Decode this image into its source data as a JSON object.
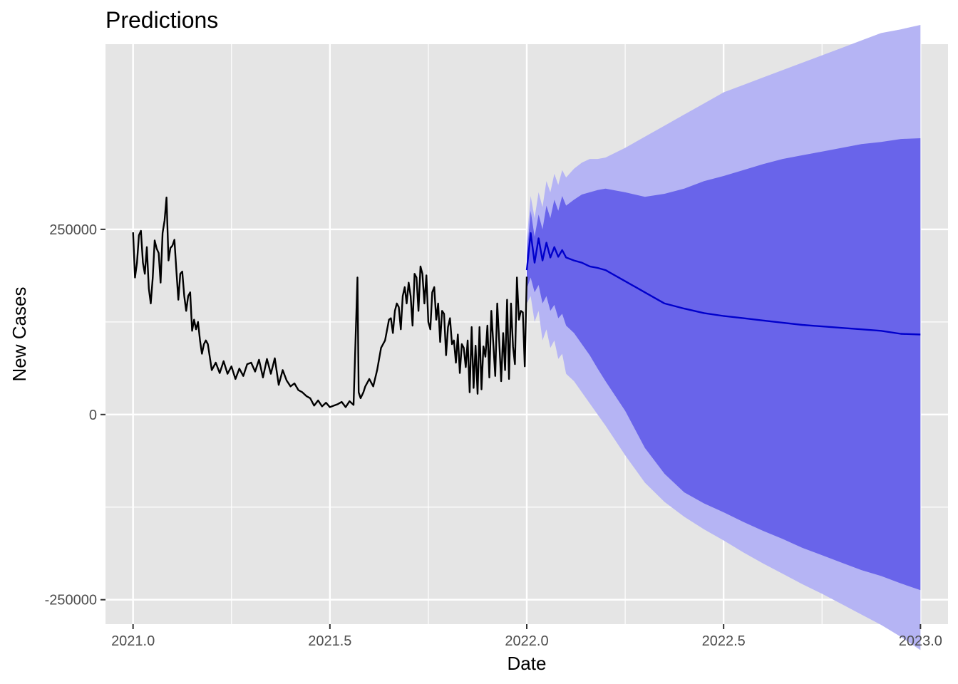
{
  "chart_data": {
    "type": "line",
    "title": "Predictions",
    "xlabel": "Date",
    "ylabel": "New Cases",
    "xlim": [
      2020.93,
      2023.07
    ],
    "ylim": [
      -283000,
      500000
    ],
    "x_ticks": [
      2021.0,
      2021.5,
      2022.0,
      2022.5,
      2023.0
    ],
    "x_tick_labels": [
      "2021.0",
      "2021.5",
      "2022.0",
      "2022.5",
      "2023.0"
    ],
    "y_ticks": [
      -250000,
      0,
      250000
    ],
    "y_tick_labels": [
      "-250000",
      "0",
      "250000"
    ],
    "grid": true,
    "colors": {
      "panel": "#e5e5e5",
      "grid": "#ffffff",
      "observed": "#000000",
      "forecast": "#0000cc",
      "band_80": "#6964ea",
      "band_95": "#b5b4f4"
    },
    "series": [
      {
        "kind": "observed",
        "x": [
          2021.0,
          2021.005,
          2021.01,
          2021.015,
          2021.02,
          2021.025,
          2021.03,
          2021.035,
          2021.04,
          2021.045,
          2021.05,
          2021.055,
          2021.06,
          2021.065,
          2021.07,
          2021.075,
          2021.08,
          2021.085,
          2021.09,
          2021.095,
          2021.1,
          2021.105,
          2021.11,
          2021.115,
          2021.12,
          2021.125,
          2021.13,
          2021.135,
          2021.14,
          2021.145,
          2021.15,
          2021.155,
          2021.16,
          2021.165,
          2021.17,
          2021.175,
          2021.18,
          2021.185,
          2021.19,
          2021.2,
          2021.21,
          2021.22,
          2021.23,
          2021.24,
          2021.25,
          2021.26,
          2021.27,
          2021.28,
          2021.29,
          2021.3,
          2021.31,
          2021.32,
          2021.33,
          2021.34,
          2021.35,
          2021.36,
          2021.37,
          2021.38,
          2021.39,
          2021.4,
          2021.41,
          2021.42,
          2021.43,
          2021.44,
          2021.45,
          2021.46,
          2021.47,
          2021.48,
          2021.49,
          2021.5,
          2021.51,
          2021.52,
          2021.53,
          2021.54,
          2021.55,
          2021.56,
          2021.57,
          2021.573,
          2021.578,
          2021.585,
          2021.59,
          2021.6,
          2021.61,
          2021.62,
          2021.63,
          2021.64,
          2021.65,
          2021.655,
          2021.66,
          2021.665,
          2021.67,
          2021.675,
          2021.68,
          2021.685,
          2021.69,
          2021.695,
          2021.7,
          2021.705,
          2021.71,
          2021.715,
          2021.72,
          2021.725,
          2021.73,
          2021.735,
          2021.74,
          2021.745,
          2021.75,
          2021.755,
          2021.76,
          2021.765,
          2021.77,
          2021.775,
          2021.78,
          2021.785,
          2021.79,
          2021.795,
          2021.8,
          2021.805,
          2021.81,
          2021.815,
          2021.82,
          2021.825,
          2021.83,
          2021.835,
          2021.84,
          2021.845,
          2021.85,
          2021.855,
          2021.86,
          2021.865,
          2021.87,
          2021.875,
          2021.88,
          2021.885,
          2021.89,
          2021.895,
          2021.9,
          2021.905,
          2021.91,
          2021.915,
          2021.92,
          2021.925,
          2021.93,
          2021.935,
          2021.94,
          2021.945,
          2021.95,
          2021.955,
          2021.96,
          2021.965,
          2021.97,
          2021.975,
          2021.98,
          2021.985,
          2021.99,
          2021.995,
          2022.0
        ],
        "y": [
          246000,
          185000,
          205000,
          242000,
          248000,
          205000,
          190000,
          226000,
          170000,
          150000,
          185000,
          235000,
          224000,
          218000,
          178000,
          245000,
          262000,
          293000,
          208000,
          225000,
          228000,
          236000,
          195000,
          155000,
          190000,
          193000,
          160000,
          140000,
          160000,
          165000,
          113000,
          128000,
          115000,
          125000,
          100000,
          82000,
          95000,
          100000,
          95000,
          60000,
          70000,
          56000,
          72000,
          55000,
          65000,
          48000,
          62000,
          52000,
          68000,
          70000,
          58000,
          74000,
          50000,
          75000,
          55000,
          76000,
          40000,
          60000,
          46000,
          38000,
          42000,
          33000,
          30000,
          25000,
          22000,
          12000,
          19000,
          11000,
          16000,
          10000,
          12000,
          14000,
          17000,
          10000,
          18000,
          13000,
          185000,
          30000,
          22000,
          30000,
          38000,
          48000,
          38000,
          60000,
          90000,
          100000,
          128000,
          130000,
          110000,
          140000,
          150000,
          145000,
          115000,
          160000,
          172000,
          150000,
          178000,
          160000,
          120000,
          190000,
          185000,
          140000,
          200000,
          190000,
          150000,
          188000,
          125000,
          115000,
          165000,
          172000,
          128000,
          150000,
          98000,
          140000,
          136000,
          80000,
          118000,
          130000,
          95000,
          100000,
          70000,
          108000,
          56000,
          95000,
          90000,
          64000,
          100000,
          30000,
          118000,
          36000,
          93000,
          28000,
          118000,
          34000,
          92000,
          78000,
          120000,
          50000,
          140000,
          95000,
          52000,
          150000,
          100000,
          45000,
          110000,
          60000,
          155000,
          48000,
          150000,
          92000,
          68000,
          185000,
          128000,
          140000,
          138000,
          65000,
          186000
        ]
      },
      {
        "kind": "forecast",
        "x": [
          2022.0,
          2022.01,
          2022.02,
          2022.03,
          2022.04,
          2022.05,
          2022.06,
          2022.07,
          2022.08,
          2022.09,
          2022.1,
          2022.12,
          2022.14,
          2022.16,
          2022.18,
          2022.2,
          2022.25,
          2022.3,
          2022.35,
          2022.4,
          2022.45,
          2022.5,
          2022.55,
          2022.6,
          2022.65,
          2022.7,
          2022.75,
          2022.8,
          2022.85,
          2022.9,
          2022.95,
          2023.0
        ],
        "y": [
          195000,
          245000,
          205000,
          238000,
          208000,
          232000,
          212000,
          226000,
          213000,
          222000,
          212000,
          208000,
          205000,
          200000,
          198000,
          195000,
          180000,
          165000,
          150000,
          143000,
          137000,
          133000,
          130000,
          127000,
          124000,
          121000,
          119000,
          117000,
          115000,
          113000,
          109000,
          108000
        ],
        "lower_80": [
          170000,
          185000,
          165000,
          175000,
          150000,
          160000,
          140000,
          148000,
          130000,
          136000,
          120000,
          110000,
          95000,
          80000,
          62000,
          45000,
          5000,
          -45000,
          -80000,
          -105000,
          -120000,
          -132000,
          -145000,
          -157000,
          -168000,
          -180000,
          -190000,
          -200000,
          -210000,
          -218000,
          -228000,
          -237000
        ],
        "upper_80": [
          215000,
          275000,
          240000,
          270000,
          250000,
          282000,
          265000,
          290000,
          275000,
          295000,
          282000,
          290000,
          297000,
          300000,
          303000,
          305000,
          300000,
          294000,
          298000,
          305000,
          315000,
          322000,
          330000,
          338000,
          345000,
          350000,
          355000,
          360000,
          365000,
          368000,
          372000,
          373000
        ],
        "lower_95": [
          150000,
          160000,
          125000,
          140000,
          100000,
          115000,
          90000,
          100000,
          75000,
          82000,
          55000,
          45000,
          30000,
          15000,
          0,
          -15000,
          -55000,
          -92000,
          -118000,
          -138000,
          -155000,
          -170000,
          -186000,
          -201000,
          -215000,
          -229000,
          -242000,
          -256000,
          -270000,
          -284000,
          -300000,
          -318000
        ],
        "upper_95": [
          235000,
          295000,
          265000,
          300000,
          280000,
          315000,
          300000,
          325000,
          310000,
          330000,
          320000,
          332000,
          340000,
          345000,
          345000,
          347000,
          360000,
          375000,
          390000,
          405000,
          420000,
          435000,
          445000,
          455000,
          465000,
          475000,
          485000,
          495000,
          505000,
          515000,
          520000,
          526000
        ]
      }
    ]
  }
}
